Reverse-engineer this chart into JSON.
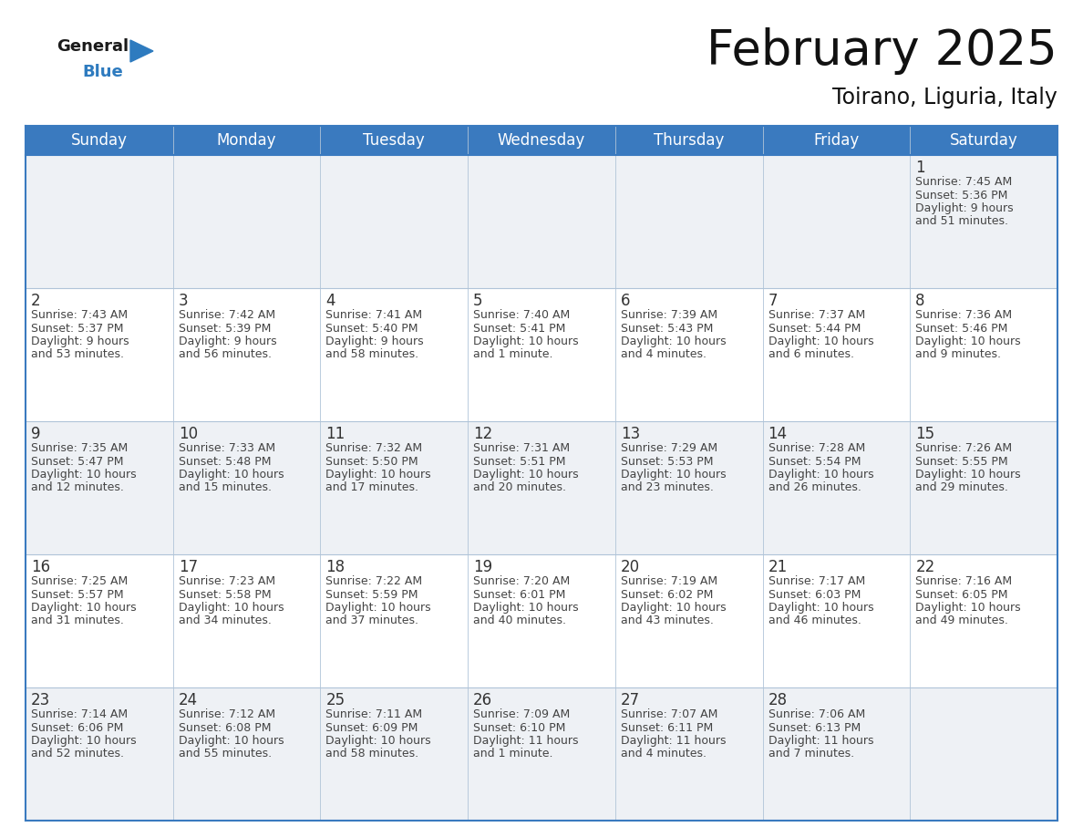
{
  "title": "February 2025",
  "subtitle": "Toirano, Liguria, Italy",
  "header_color": "#3a7abf",
  "header_text_color": "#ffffff",
  "cell_bg_white": "#ffffff",
  "cell_bg_gray": "#eef1f5",
  "day_headers": [
    "Sunday",
    "Monday",
    "Tuesday",
    "Wednesday",
    "Thursday",
    "Friday",
    "Saturday"
  ],
  "title_fontsize": 38,
  "subtitle_fontsize": 17,
  "header_fontsize": 12,
  "cell_number_fontsize": 12,
  "cell_text_fontsize": 9,
  "days": [
    {
      "day": 1,
      "col": 6,
      "row": 0,
      "sunrise": "7:45 AM",
      "sunset": "5:36 PM",
      "daylight": "9 hours and 51 minutes"
    },
    {
      "day": 2,
      "col": 0,
      "row": 1,
      "sunrise": "7:43 AM",
      "sunset": "5:37 PM",
      "daylight": "9 hours and 53 minutes"
    },
    {
      "day": 3,
      "col": 1,
      "row": 1,
      "sunrise": "7:42 AM",
      "sunset": "5:39 PM",
      "daylight": "9 hours and 56 minutes"
    },
    {
      "day": 4,
      "col": 2,
      "row": 1,
      "sunrise": "7:41 AM",
      "sunset": "5:40 PM",
      "daylight": "9 hours and 58 minutes"
    },
    {
      "day": 5,
      "col": 3,
      "row": 1,
      "sunrise": "7:40 AM",
      "sunset": "5:41 PM",
      "daylight": "10 hours and 1 minute"
    },
    {
      "day": 6,
      "col": 4,
      "row": 1,
      "sunrise": "7:39 AM",
      "sunset": "5:43 PM",
      "daylight": "10 hours and 4 minutes"
    },
    {
      "day": 7,
      "col": 5,
      "row": 1,
      "sunrise": "7:37 AM",
      "sunset": "5:44 PM",
      "daylight": "10 hours and 6 minutes"
    },
    {
      "day": 8,
      "col": 6,
      "row": 1,
      "sunrise": "7:36 AM",
      "sunset": "5:46 PM",
      "daylight": "10 hours and 9 minutes"
    },
    {
      "day": 9,
      "col": 0,
      "row": 2,
      "sunrise": "7:35 AM",
      "sunset": "5:47 PM",
      "daylight": "10 hours and 12 minutes"
    },
    {
      "day": 10,
      "col": 1,
      "row": 2,
      "sunrise": "7:33 AM",
      "sunset": "5:48 PM",
      "daylight": "10 hours and 15 minutes"
    },
    {
      "day": 11,
      "col": 2,
      "row": 2,
      "sunrise": "7:32 AM",
      "sunset": "5:50 PM",
      "daylight": "10 hours and 17 minutes"
    },
    {
      "day": 12,
      "col": 3,
      "row": 2,
      "sunrise": "7:31 AM",
      "sunset": "5:51 PM",
      "daylight": "10 hours and 20 minutes"
    },
    {
      "day": 13,
      "col": 4,
      "row": 2,
      "sunrise": "7:29 AM",
      "sunset": "5:53 PM",
      "daylight": "10 hours and 23 minutes"
    },
    {
      "day": 14,
      "col": 5,
      "row": 2,
      "sunrise": "7:28 AM",
      "sunset": "5:54 PM",
      "daylight": "10 hours and 26 minutes"
    },
    {
      "day": 15,
      "col": 6,
      "row": 2,
      "sunrise": "7:26 AM",
      "sunset": "5:55 PM",
      "daylight": "10 hours and 29 minutes"
    },
    {
      "day": 16,
      "col": 0,
      "row": 3,
      "sunrise": "7:25 AM",
      "sunset": "5:57 PM",
      "daylight": "10 hours and 31 minutes"
    },
    {
      "day": 17,
      "col": 1,
      "row": 3,
      "sunrise": "7:23 AM",
      "sunset": "5:58 PM",
      "daylight": "10 hours and 34 minutes"
    },
    {
      "day": 18,
      "col": 2,
      "row": 3,
      "sunrise": "7:22 AM",
      "sunset": "5:59 PM",
      "daylight": "10 hours and 37 minutes"
    },
    {
      "day": 19,
      "col": 3,
      "row": 3,
      "sunrise": "7:20 AM",
      "sunset": "6:01 PM",
      "daylight": "10 hours and 40 minutes"
    },
    {
      "day": 20,
      "col": 4,
      "row": 3,
      "sunrise": "7:19 AM",
      "sunset": "6:02 PM",
      "daylight": "10 hours and 43 minutes"
    },
    {
      "day": 21,
      "col": 5,
      "row": 3,
      "sunrise": "7:17 AM",
      "sunset": "6:03 PM",
      "daylight": "10 hours and 46 minutes"
    },
    {
      "day": 22,
      "col": 6,
      "row": 3,
      "sunrise": "7:16 AM",
      "sunset": "6:05 PM",
      "daylight": "10 hours and 49 minutes"
    },
    {
      "day": 23,
      "col": 0,
      "row": 4,
      "sunrise": "7:14 AM",
      "sunset": "6:06 PM",
      "daylight": "10 hours and 52 minutes"
    },
    {
      "day": 24,
      "col": 1,
      "row": 4,
      "sunrise": "7:12 AM",
      "sunset": "6:08 PM",
      "daylight": "10 hours and 55 minutes"
    },
    {
      "day": 25,
      "col": 2,
      "row": 4,
      "sunrise": "7:11 AM",
      "sunset": "6:09 PM",
      "daylight": "10 hours and 58 minutes"
    },
    {
      "day": 26,
      "col": 3,
      "row": 4,
      "sunrise": "7:09 AM",
      "sunset": "6:10 PM",
      "daylight": "11 hours and 1 minute"
    },
    {
      "day": 27,
      "col": 4,
      "row": 4,
      "sunrise": "7:07 AM",
      "sunset": "6:11 PM",
      "daylight": "11 hours and 4 minutes"
    },
    {
      "day": 28,
      "col": 5,
      "row": 4,
      "sunrise": "7:06 AM",
      "sunset": "6:13 PM",
      "daylight": "11 hours and 7 minutes"
    }
  ],
  "num_rows": 5,
  "num_cols": 7,
  "line_color": "#3a7abf",
  "inner_line_color": "#b0c4d8",
  "day_num_color": "#333333",
  "cell_text_color": "#444444",
  "logo_general_color": "#1a1a1a",
  "logo_blue_color": "#2e7bbf"
}
